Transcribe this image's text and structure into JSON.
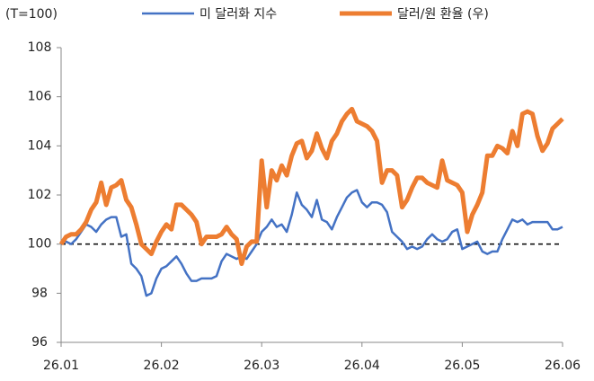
{
  "chart_data": {
    "type": "line",
    "y_label": "(T=100)",
    "categories": [
      "26.01",
      null,
      null,
      null,
      null,
      null,
      null,
      null,
      null,
      null,
      null,
      null,
      null,
      null,
      null,
      null,
      null,
      null,
      null,
      null,
      "26.02",
      null,
      null,
      null,
      null,
      null,
      null,
      null,
      null,
      null,
      null,
      null,
      null,
      null,
      null,
      null,
      null,
      null,
      null,
      null,
      "26.03",
      null,
      null,
      null,
      null,
      null,
      null,
      null,
      null,
      null,
      null,
      null,
      null,
      null,
      null,
      null,
      null,
      null,
      null,
      null,
      "26.04",
      null,
      null,
      null,
      null,
      null,
      null,
      null,
      null,
      null,
      null,
      null,
      null,
      null,
      null,
      null,
      null,
      null,
      null,
      null,
      "26.05",
      null,
      null,
      null,
      null,
      null,
      null,
      null,
      null,
      null,
      null,
      null,
      null,
      null,
      null,
      null,
      null,
      null,
      null,
      null,
      "26.06"
    ],
    "series": [
      {
        "name": "미 달러화 지수",
        "color": "#4472c4",
        "width": 2.5,
        "values": [
          100.0,
          100.1,
          100.0,
          100.2,
          100.5,
          100.8,
          100.7,
          100.5,
          100.8,
          101.0,
          101.1,
          101.1,
          100.3,
          100.4,
          99.2,
          99.0,
          98.7,
          97.9,
          98.0,
          98.6,
          99.0,
          99.1,
          99.3,
          99.5,
          99.2,
          98.8,
          98.5,
          98.5,
          98.6,
          98.6,
          98.6,
          98.7,
          99.3,
          99.6,
          99.5,
          99.4,
          99.5,
          99.4,
          99.7,
          100.0,
          100.5,
          100.7,
          101.0,
          100.7,
          100.8,
          100.5,
          101.2,
          102.1,
          101.6,
          101.4,
          101.1,
          101.8,
          101.0,
          100.9,
          100.6,
          101.1,
          101.5,
          101.9,
          102.1,
          102.2,
          101.7,
          101.5,
          101.7,
          101.7,
          101.6,
          101.3,
          100.5,
          100.3,
          100.1,
          99.8,
          99.9,
          99.8,
          99.9,
          100.2,
          100.4,
          100.2,
          100.1,
          100.2,
          100.5,
          100.6,
          99.8,
          99.9,
          100.0,
          100.1,
          99.7,
          99.6,
          99.7,
          99.7,
          100.2,
          100.6,
          101.0,
          100.9,
          101.0,
          100.8,
          100.9,
          100.9,
          100.9,
          100.9,
          100.6,
          100.6,
          100.7
        ]
      },
      {
        "name": "달러/원 환율 (우)",
        "color": "#ed7d31",
        "width": 5,
        "values": [
          100.0,
          100.3,
          100.4,
          100.4,
          100.6,
          100.9,
          101.4,
          101.7,
          102.5,
          101.6,
          102.3,
          102.4,
          102.6,
          101.8,
          101.5,
          100.8,
          100.0,
          99.8,
          99.6,
          100.1,
          100.5,
          100.8,
          100.6,
          101.6,
          101.6,
          101.4,
          101.2,
          100.9,
          100.0,
          100.3,
          100.3,
          100.3,
          100.4,
          100.7,
          100.4,
          100.2,
          99.2,
          99.9,
          100.1,
          100.1,
          103.4,
          101.5,
          103.0,
          102.6,
          103.2,
          102.8,
          103.6,
          104.1,
          104.2,
          103.5,
          103.8,
          104.5,
          103.9,
          103.5,
          104.2,
          104.5,
          105.0,
          105.3,
          105.5,
          105.0,
          104.9,
          104.8,
          104.6,
          104.2,
          102.5,
          103.0,
          103.0,
          102.8,
          101.5,
          101.8,
          102.3,
          102.7,
          102.7,
          102.5,
          102.4,
          102.3,
          103.4,
          102.6,
          102.5,
          102.4,
          102.1,
          100.5,
          101.2,
          101.6,
          102.1,
          103.6,
          103.6,
          104.0,
          103.9,
          103.7,
          104.6,
          104.0,
          105.3,
          105.4,
          105.3,
          104.4,
          103.8,
          104.1,
          104.7,
          104.9,
          105.1
        ]
      }
    ],
    "ylim": [
      96,
      108
    ],
    "yticks": [
      96,
      98,
      100,
      102,
      104,
      106,
      108
    ],
    "reference_line": 100
  }
}
